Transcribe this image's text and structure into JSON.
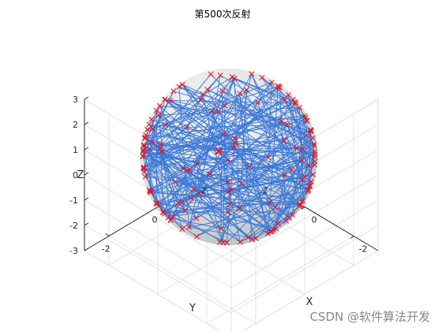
{
  "title": "第500次反射",
  "watermark": "CSDN @软件算法开发",
  "colors": {
    "path": "#3a78d8",
    "marker": "#e8141c",
    "sphere_light": "#e8e8e8",
    "sphere_dark": "#b4b4b4",
    "grid": "#e3e3e3",
    "axis": "#262626"
  },
  "chart_data": {
    "type": "line",
    "subtype": "3d-line-with-markers",
    "title": "第500次反射",
    "xlabel": "X",
    "ylabel": "Y",
    "zlabel": "Z",
    "xlim": [
      -3,
      3
    ],
    "ylim": [
      -3,
      3
    ],
    "zlim": [
      -3,
      3
    ],
    "x_ticks": [
      -2,
      0,
      2
    ],
    "y_ticks": [
      -2,
      0,
      2
    ],
    "z_ticks": [
      -3,
      -2,
      -1,
      0,
      1,
      2,
      3
    ],
    "x_tick_labels": [
      "-2",
      "0",
      "2"
    ],
    "y_tick_labels": [
      "-2",
      "0",
      "2"
    ],
    "z_tick_labels": [
      "-3",
      "-2",
      "-1",
      "0",
      "1",
      "2",
      "3"
    ],
    "grid": true,
    "sphere": {
      "center": [
        0,
        0,
        0
      ],
      "radius": 3
    },
    "reflections": 500,
    "marker": "x",
    "legend": "none"
  }
}
